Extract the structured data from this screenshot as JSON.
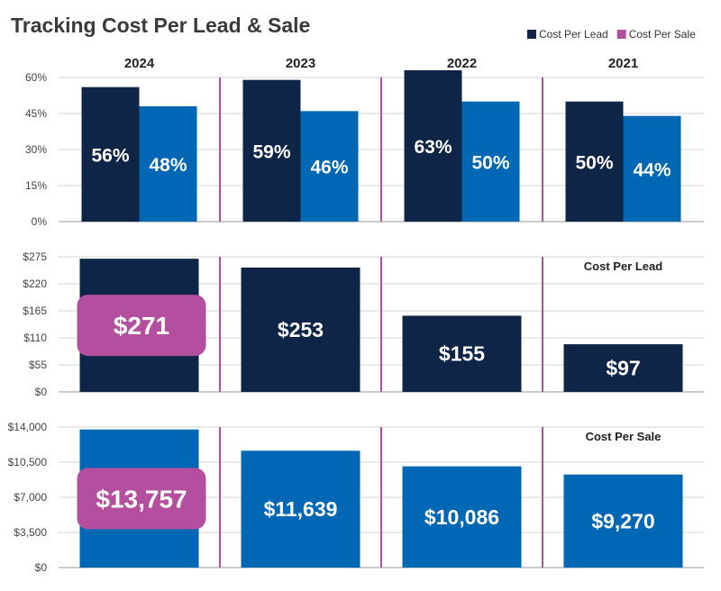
{
  "title": "Tracking Cost Per Lead & Sale",
  "colors": {
    "lead": "#0f2547",
    "sale": "#0067b5",
    "highlight": "#b44fa0",
    "separator": "#b14fa3"
  },
  "legend": [
    {
      "label": "Cost Per Lead",
      "color": "#0f2547"
    },
    {
      "label": "Cost Per Sale",
      "color": "#b44fa0"
    }
  ],
  "chart_data": [
    {
      "type": "bar",
      "title": "",
      "categories": [
        "2024",
        "2023",
        "2022",
        "2021"
      ],
      "series": [
        {
          "name": "Cost Per Lead",
          "values": [
            56,
            59,
            63,
            50
          ],
          "labels": [
            "56%",
            "59%",
            "63%",
            "50%"
          ]
        },
        {
          "name": "Cost Per Sale",
          "values": [
            48,
            46,
            50,
            44
          ],
          "labels": [
            "48%",
            "46%",
            "50%",
            "44%"
          ]
        }
      ],
      "ylim": [
        0,
        60
      ],
      "yticks": [
        0,
        15,
        30,
        45,
        60
      ],
      "ytick_labels": [
        "0%",
        "15%",
        "30%",
        "45%",
        "60%"
      ],
      "grid": true
    },
    {
      "type": "bar",
      "panel_label": "Cost Per Lead",
      "categories": [
        "2024",
        "2023",
        "2022",
        "2021"
      ],
      "values": [
        271,
        253,
        155,
        97
      ],
      "labels": [
        "$271",
        "$253",
        "$155",
        "$97"
      ],
      "highlight_index": 0,
      "ylim": [
        0,
        275
      ],
      "yticks": [
        0,
        55,
        110,
        165,
        220,
        275
      ],
      "ytick_labels": [
        "$0",
        "$55",
        "$110",
        "$165",
        "$220",
        "$275"
      ],
      "grid": true
    },
    {
      "type": "bar",
      "panel_label": "Cost Per Sale",
      "categories": [
        "2024",
        "2023",
        "2022",
        "2021"
      ],
      "values": [
        13757,
        11639,
        10086,
        9270
      ],
      "labels": [
        "$13,757",
        "$11,639",
        "$10,086",
        "$9,270"
      ],
      "highlight_index": 0,
      "ylim": [
        0,
        14000
      ],
      "yticks": [
        0,
        3500,
        7000,
        10500,
        14000
      ],
      "ytick_labels": [
        "$0",
        "$3,500",
        "$7,000",
        "$10,500",
        "$14,000"
      ],
      "grid": true
    }
  ]
}
